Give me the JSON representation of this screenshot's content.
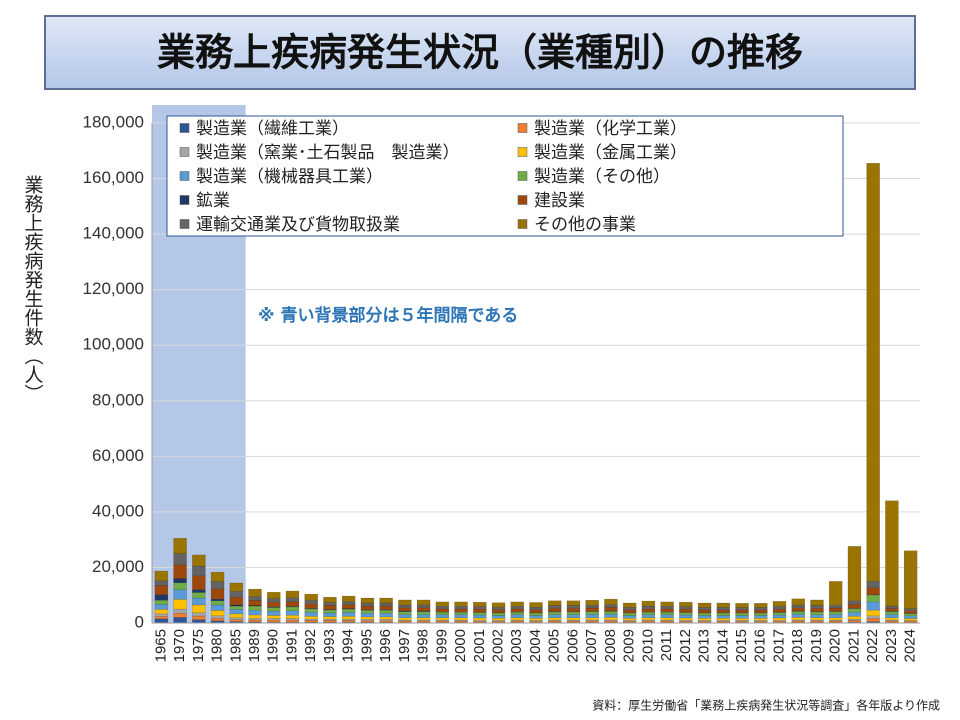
{
  "chart_data": {
    "type": "stacked_bar",
    "title": "業務上疾病発生状況（業種別）の推移",
    "y_label": "業務上疾病発生件数（人）",
    "annotation": "※ 青い背景部分は５年間隔である",
    "source": "資料：厚生労働省「業務上疾病発生状況等調査」各年版より作成",
    "shaded": {
      "from": "1965",
      "to": "1985",
      "color": "#b4c7e7"
    },
    "grid": true,
    "ylim": [
      0,
      180000
    ],
    "yticks": [
      0,
      {
        "value": 20000,
        "label": "20,000"
      },
      {
        "value": 40000,
        "label": "40,000"
      },
      {
        "value": 60000,
        "label": "60,000"
      },
      {
        "value": 80000,
        "label": "80,000"
      },
      {
        "value": 100000,
        "label": "100,000"
      },
      {
        "value": 120000,
        "label": "120,000"
      },
      {
        "value": 140000,
        "label": "140,000"
      },
      {
        "value": 160000,
        "label": "160,000"
      },
      {
        "value": 180000,
        "label": "180,000"
      }
    ],
    "categories": [
      "1965",
      "1970",
      "1975",
      "1980",
      "1985",
      "1989",
      "1990",
      "1991",
      "1992",
      "1993",
      "1994",
      "1995",
      "1996",
      "1997",
      "1998",
      "1999",
      "2000",
      "2001",
      "2002",
      "2003",
      "2004",
      "2005",
      "2006",
      "2007",
      "2008",
      "2009",
      "2010",
      "2011",
      "2012",
      "2013",
      "2014",
      "2015",
      "2016",
      "2017",
      "2018",
      "2019",
      "2020",
      "2021",
      "2022",
      "2023",
      "2024"
    ],
    "series": [
      {
        "name": "製造業（繊維工業）",
        "color": "#2f5597",
        "values": [
          1500,
          2000,
          1200,
          800,
          500,
          400,
          300,
          300,
          300,
          300,
          300,
          300,
          300,
          200,
          200,
          200,
          200,
          200,
          200,
          200,
          200,
          200,
          200,
          200,
          200,
          200,
          200,
          200,
          200,
          200,
          200,
          200,
          200,
          200,
          200,
          200,
          200,
          300,
          500,
          200,
          200
        ]
      },
      {
        "name": "製造業（化学工業）",
        "color": "#ed7d31",
        "values": [
          900,
          1500,
          1300,
          900,
          700,
          700,
          700,
          700,
          600,
          600,
          600,
          500,
          500,
          500,
          500,
          500,
          500,
          400,
          400,
          500,
          400,
          500,
          500,
          500,
          500,
          400,
          500,
          500,
          400,
          400,
          400,
          400,
          400,
          400,
          500,
          500,
          500,
          600,
          1200,
          500,
          400
        ]
      },
      {
        "name": "製造業（窯業･土石製品　製造業）",
        "color": "#a5a5a5",
        "values": [
          900,
          1500,
          1200,
          900,
          700,
          600,
          600,
          600,
          500,
          500,
          500,
          500,
          500,
          400,
          400,
          400,
          400,
          400,
          400,
          400,
          400,
          400,
          400,
          400,
          400,
          400,
          400,
          400,
          400,
          400,
          400,
          400,
          400,
          400,
          400,
          400,
          400,
          500,
          900,
          400,
          300
        ]
      },
      {
        "name": "製造業（金属工業）",
        "color": "#ffc000",
        "values": [
          1600,
          3500,
          2800,
          1900,
          1400,
          1200,
          1100,
          1200,
          1000,
          900,
          1000,
          900,
          900,
          800,
          800,
          800,
          800,
          800,
          700,
          800,
          700,
          800,
          800,
          800,
          900,
          700,
          800,
          800,
          800,
          700,
          700,
          700,
          700,
          800,
          900,
          800,
          800,
          1000,
          2000,
          800,
          700
        ]
      },
      {
        "name": "製造業（機械器具工業）",
        "color": "#5b9bd5",
        "values": [
          1800,
          3500,
          2500,
          2000,
          1600,
          1700,
          1600,
          1600,
          1500,
          1300,
          1400,
          1300,
          1300,
          1200,
          1200,
          1100,
          1100,
          1100,
          1000,
          1100,
          1000,
          1100,
          1100,
          1200,
          1200,
          1000,
          1100,
          1100,
          1100,
          1000,
          1000,
          1000,
          1000,
          1100,
          1200,
          1100,
          1200,
          1500,
          3000,
          1200,
          1000
        ]
      },
      {
        "name": "製造業（その他）",
        "color": "#70ad47",
        "values": [
          1500,
          2500,
          2000,
          1500,
          1200,
          1500,
          1300,
          1400,
          1200,
          1100,
          1200,
          1100,
          1100,
          1000,
          1000,
          900,
          900,
          900,
          900,
          900,
          900,
          1000,
          1000,
          1000,
          1000,
          900,
          900,
          900,
          900,
          900,
          900,
          900,
          900,
          900,
          1000,
          1000,
          1000,
          1300,
          2500,
          1000,
          800
        ]
      },
      {
        "name": "鉱業",
        "color": "#1f3864",
        "values": [
          2000,
          1500,
          1000,
          600,
          400,
          200,
          200,
          200,
          200,
          200,
          200,
          200,
          200,
          200,
          200,
          100,
          100,
          100,
          100,
          100,
          100,
          100,
          100,
          100,
          100,
          100,
          100,
          100,
          100,
          100,
          100,
          100,
          100,
          100,
          100,
          100,
          100,
          100,
          100,
          100,
          100
        ]
      },
      {
        "name": "建設業",
        "color": "#9e480e",
        "values": [
          3300,
          5000,
          5000,
          3700,
          2800,
          1800,
          1700,
          1700,
          1600,
          1400,
          1400,
          1300,
          1300,
          1200,
          1200,
          1100,
          1100,
          1100,
          1100,
          1100,
          1100,
          1200,
          1200,
          1200,
          1300,
          1000,
          1100,
          1100,
          1100,
          1000,
          1000,
          1000,
          1000,
          1100,
          1200,
          1200,
          1200,
          1400,
          2500,
          1000,
          900
        ]
      },
      {
        "name": "運輸交通業及び貨物取扱業",
        "color": "#636363",
        "values": [
          1700,
          4000,
          3500,
          2600,
          2100,
          1500,
          1300,
          1400,
          1300,
          1100,
          1100,
          1100,
          1100,
          1000,
          1000,
          900,
          900,
          900,
          900,
          900,
          900,
          1000,
          1000,
          1000,
          1000,
          900,
          1000,
          900,
          900,
          900,
          900,
          900,
          900,
          1000,
          1000,
          1000,
          1000,
          1300,
          2300,
          900,
          800
        ]
      },
      {
        "name": "その他の事業",
        "color": "#9a7400",
        "values": [
          3500,
          5500,
          4000,
          3400,
          3000,
          2600,
          2300,
          2400,
          2200,
          1900,
          2000,
          1800,
          1800,
          1800,
          1800,
          1600,
          1600,
          1600,
          1600,
          1600,
          1700,
          1700,
          1700,
          1800,
          2000,
          1600,
          1800,
          1600,
          1600,
          1600,
          1600,
          1500,
          1500,
          1800,
          2200,
          2000,
          8600,
          19600,
          150500,
          37900,
          20800
        ]
      }
    ]
  }
}
